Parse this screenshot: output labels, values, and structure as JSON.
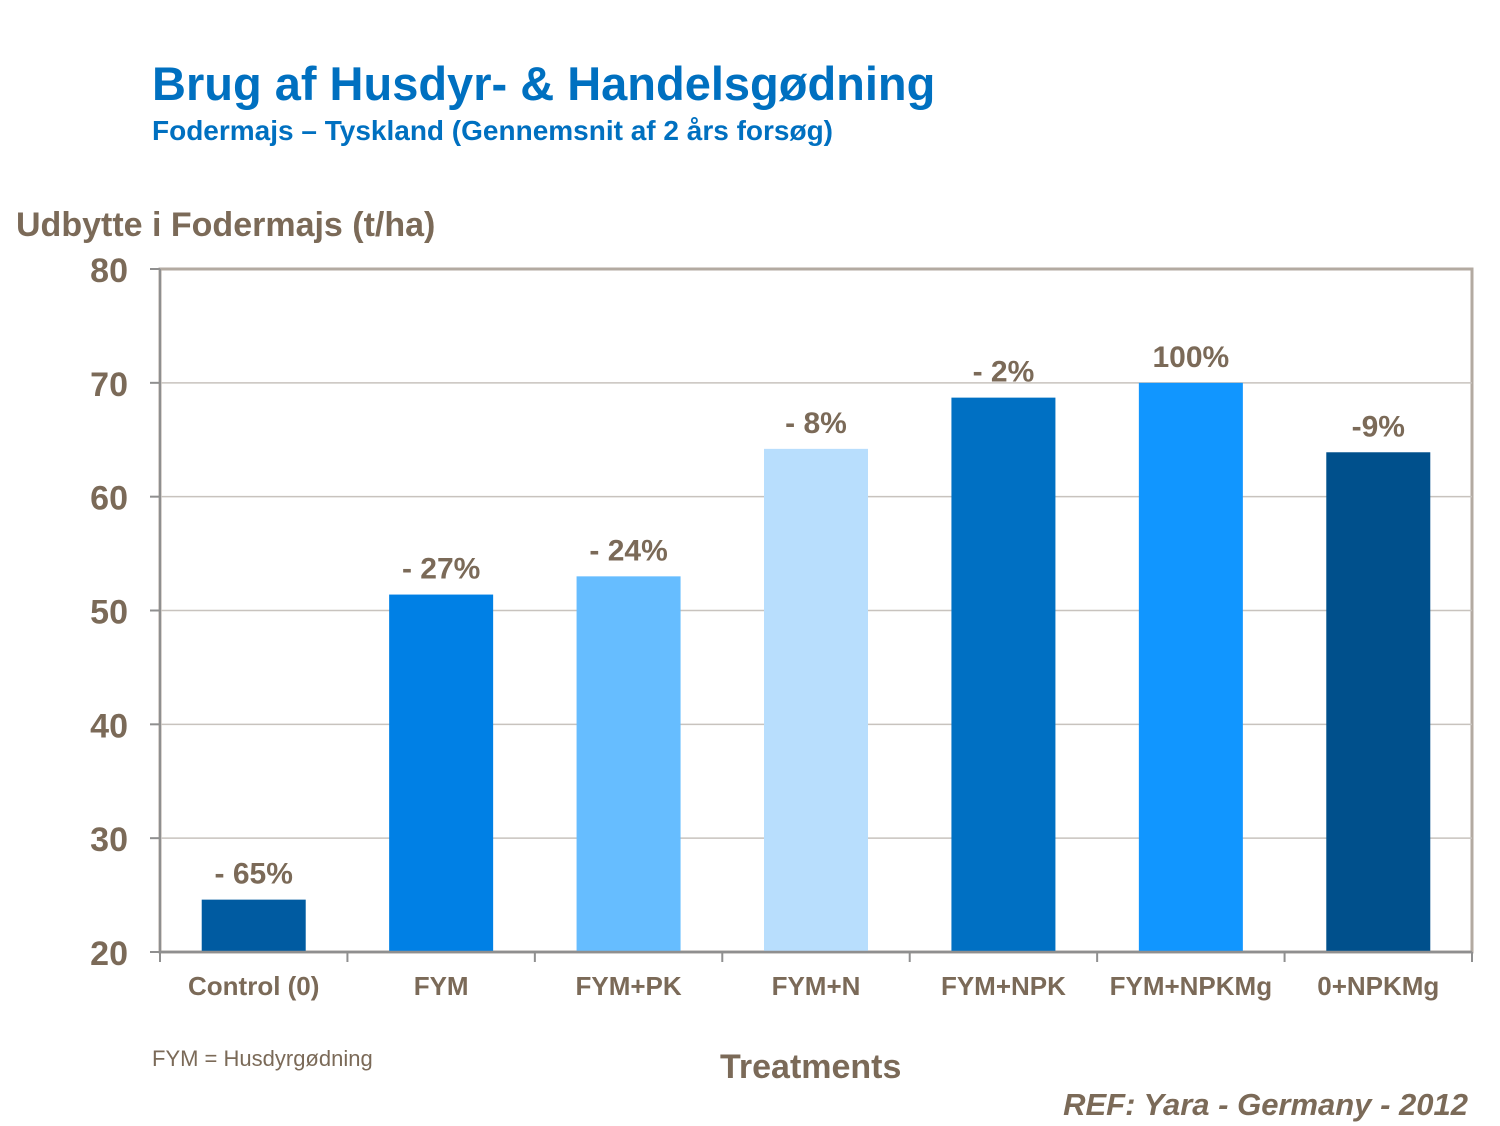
{
  "title": "Brug af Husdyr- & Handelsgødning",
  "subtitle": "Fodermajs – Tyskland (Gennemsnit af 2 års forsøg)",
  "footnote": "FYM = Husdyrgødning",
  "reference": "REF: Yara - Germany - 2012",
  "chart_data": {
    "type": "bar",
    "title": "Brug af Husdyr- & Handelsgødning",
    "subtitle": "Fodermajs – Tyskland (Gennemsnit af 2 års forsøg)",
    "ylabel": "Udbytte i Fodermajs (t/ha)",
    "xlabel": "Treatments",
    "ylim": [
      20,
      80
    ],
    "yticks": [
      20,
      30,
      40,
      50,
      60,
      70,
      80
    ],
    "grid": true,
    "categories": [
      "Control (0)",
      "FYM",
      "FYM+PK",
      "FYM+N",
      "FYM+NPK",
      "FYM+NPKMg",
      "0+NPKMg"
    ],
    "values": [
      24.6,
      51.4,
      53.0,
      64.2,
      68.7,
      70.0,
      63.9
    ],
    "data_labels": [
      "- 65%",
      "- 27%",
      "- 24%",
      "- 8%",
      "- 2%",
      "100%",
      "-9%"
    ],
    "colors": [
      "#005ba1",
      "#0080e5",
      "#66bdff",
      "#b8defd",
      "#0070c3",
      "#1196ff",
      "#00508c"
    ],
    "axis_text_color": "#7b6a58",
    "title_color": "#0070c0"
  }
}
